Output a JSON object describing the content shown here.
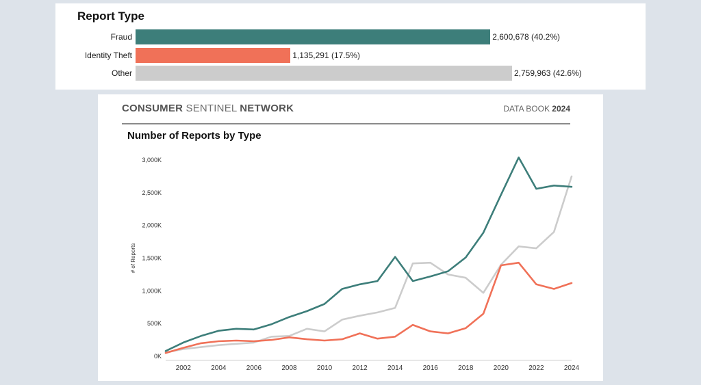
{
  "summary": {
    "title": "Report Type",
    "rows": [
      {
        "label": "Fraud",
        "value": 2600678,
        "display": "2,600,678 (40.2%)",
        "color": "#3d7e7a"
      },
      {
        "label": "Identity Theft",
        "value": 1135291,
        "display": "1,135,291 (17.5%)",
        "color": "#f07158"
      },
      {
        "label": "Other",
        "value": 2759963,
        "display": "2,759,963 (42.6%)",
        "color": "#cccccc"
      }
    ]
  },
  "header": {
    "left_light1": "CONSUMER",
    "left_light2": "SENTINEL",
    "left_bold": "NETWORK",
    "right_light": "DATA BOOK",
    "right_bold": "2024"
  },
  "chart_data": {
    "type": "line",
    "title": "Number of Reports by Type",
    "ylabel": "# of Reports",
    "xlabel": "",
    "ylim": [
      0,
      3000000
    ],
    "yticks": [
      0,
      500000,
      1000000,
      1500000,
      2000000,
      2500000,
      3000000
    ],
    "ytick_labels": [
      "0K",
      "500K",
      "1,000K",
      "1,500K",
      "2,000K",
      "2,500K",
      "3,000K"
    ],
    "xlim": [
      2001,
      2024
    ],
    "xticks": [
      2002,
      2004,
      2006,
      2008,
      2010,
      2012,
      2014,
      2016,
      2018,
      2020,
      2022,
      2024
    ],
    "x": [
      2001,
      2002,
      2003,
      2004,
      2005,
      2006,
      2007,
      2008,
      2009,
      2010,
      2011,
      2012,
      2013,
      2014,
      2015,
      2016,
      2017,
      2018,
      2019,
      2020,
      2021,
      2022,
      2023,
      2024
    ],
    "grid": false,
    "series": [
      {
        "name": "Fraud",
        "color": "#3d7e7a",
        "values": [
          80000,
          210000,
          310000,
          390000,
          420000,
          410000,
          490000,
          600000,
          690000,
          800000,
          1030000,
          1100000,
          1150000,
          1520000,
          1150000,
          1220000,
          1300000,
          1510000,
          1890000,
          2470000,
          3040000,
          2560000,
          2610000,
          2590000
        ]
      },
      {
        "name": "Identity Theft",
        "color": "#f07158",
        "values": [
          50000,
          130000,
          200000,
          230000,
          240000,
          230000,
          250000,
          290000,
          260000,
          240000,
          260000,
          350000,
          270000,
          300000,
          480000,
          380000,
          350000,
          430000,
          650000,
          1390000,
          1430000,
          1100000,
          1030000,
          1120000
        ]
      },
      {
        "name": "Other",
        "color": "#cccccc",
        "values": [
          60000,
          110000,
          140000,
          170000,
          190000,
          210000,
          300000,
          310000,
          420000,
          380000,
          560000,
          620000,
          670000,
          740000,
          1420000,
          1430000,
          1250000,
          1200000,
          970000,
          1400000,
          1680000,
          1650000,
          1900000,
          2750000
        ]
      }
    ]
  }
}
